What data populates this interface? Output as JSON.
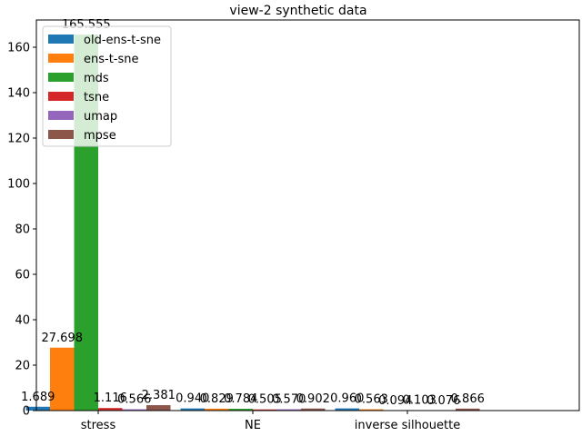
{
  "chart_data": {
    "type": "bar",
    "title": "view-2 synthetic data",
    "xlabel": "",
    "ylabel": "",
    "categories": [
      "stress",
      "NE",
      "inverse silhouette"
    ],
    "ylim": [
      0,
      172
    ],
    "yticks": [
      0,
      20,
      40,
      60,
      80,
      100,
      120,
      140,
      160
    ],
    "legend_position": "top-left",
    "series": [
      {
        "name": "old-ens-t-sne",
        "color": "#1f77b4",
        "values": [
          1.689,
          0.94,
          0.96
        ],
        "labels": [
          "1.689",
          "0.940",
          "0.960"
        ]
      },
      {
        "name": "ens-t-sne",
        "color": "#ff7f0e",
        "values": [
          27.698,
          0.829,
          0.563
        ],
        "labels": [
          "27.698",
          "0.829",
          "0.563"
        ]
      },
      {
        "name": "mds",
        "color": "#2ca02c",
        "values": [
          165.555,
          0.784,
          0.094
        ],
        "labels": [
          "165.555",
          "0.784",
          "0.094"
        ]
      },
      {
        "name": "tsne",
        "color": "#d62728",
        "values": [
          1.116,
          0.505,
          0.103
        ],
        "labels": [
          "1.116",
          "0.505",
          "0.103"
        ]
      },
      {
        "name": "umap",
        "color": "#9467bd",
        "values": [
          0.566,
          0.57,
          0.076
        ],
        "labels": [
          "0.566",
          "0.570",
          "0.076"
        ]
      },
      {
        "name": "mpse",
        "color": "#8c564b",
        "values": [
          2.381,
          0.902,
          0.866
        ],
        "labels": [
          "2.381",
          "0.902",
          "0.866"
        ]
      }
    ]
  }
}
